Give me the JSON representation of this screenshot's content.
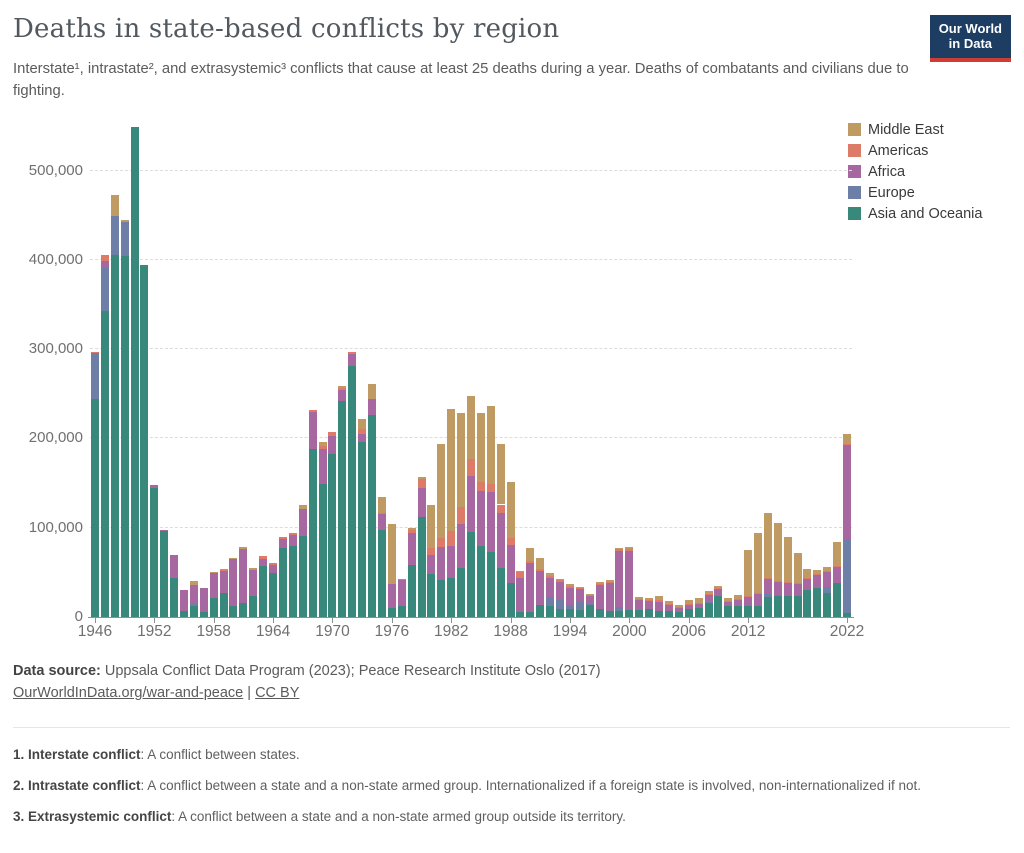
{
  "header": {
    "title": "Deaths in state-based conflicts by region",
    "subtitle": "Interstate¹, intrastate², and extrasystemic³ conflicts that cause at least 25 deaths during a year. Deaths of combatants and civilians due to fighting.",
    "logo_line1": "Our World",
    "logo_line2": "in Data",
    "logo_bg": "#1d3d63",
    "logo_underline": "#cd3d34"
  },
  "legend": {
    "position": "top-right",
    "items": [
      {
        "label": "Middle East",
        "color": "#BF9A63"
      },
      {
        "label": "Americas",
        "color": "#DE7A68"
      },
      {
        "label": "Africa",
        "color": "#A767A1"
      },
      {
        "label": "Europe",
        "color": "#6D7EA7"
      },
      {
        "label": "Asia and Oceania",
        "color": "#38897C"
      }
    ]
  },
  "chart_data": {
    "type": "bar",
    "stacked": true,
    "unit": "deaths (values stored in thousands)",
    "title": "Deaths in state-based conflicts by region",
    "xlabel": "",
    "ylabel": "",
    "ylim_thousands": [
      0,
      560
    ],
    "grid": "dashed horizontal at 100,000 intervals",
    "years_start": 1946,
    "years_end": 2022,
    "xticks": [
      1946,
      1952,
      1958,
      1964,
      1970,
      1976,
      1982,
      1988,
      1994,
      2000,
      2006,
      2012,
      2022
    ],
    "yticks": [
      {
        "v": 0,
        "label": "0"
      },
      {
        "v": 100,
        "label": "100,000"
      },
      {
        "v": 200,
        "label": "200,000"
      },
      {
        "v": 300,
        "label": "300,000"
      },
      {
        "v": 400,
        "label": "400,000"
      },
      {
        "v": 500,
        "label": "500,000"
      }
    ],
    "series": [
      {
        "name": "Asia and Oceania",
        "color": "#38897C",
        "values_thousands": [
          244,
          343,
          405,
          404,
          549,
          394,
          144,
          97,
          44,
          7,
          12,
          6,
          21,
          27,
          12,
          16,
          23,
          57,
          49,
          77,
          80,
          91,
          188,
          149,
          182,
          242,
          281,
          196,
          226,
          98,
          10,
          12,
          58,
          112,
          48,
          42,
          44,
          55,
          95,
          79,
          73,
          55,
          38,
          6,
          6,
          14,
          12,
          9,
          9,
          8,
          13,
          9,
          7,
          7,
          8,
          8,
          9,
          7,
          7,
          6,
          9,
          10,
          16,
          23,
          12,
          12,
          12,
          12,
          22,
          24,
          24,
          24,
          30,
          32,
          27,
          38,
          5
        ]
      },
      {
        "name": "Europe",
        "color": "#6D7EA7",
        "values_thousands": [
          52,
          48,
          44,
          38,
          0,
          0,
          0,
          0,
          0,
          0,
          3,
          0,
          0,
          0,
          0,
          0,
          0,
          0,
          0,
          0,
          0,
          0,
          0,
          0,
          0,
          0,
          0,
          0,
          0,
          0,
          0,
          0,
          0,
          0,
          0,
          0,
          0,
          0,
          0,
          0,
          0,
          0,
          0,
          0,
          0,
          0,
          10,
          10,
          5,
          9,
          2,
          0,
          0,
          4,
          0,
          0,
          0,
          0,
          0,
          0,
          0,
          0,
          1,
          0,
          0,
          0,
          0,
          0,
          4,
          1,
          0,
          0,
          0,
          0,
          7,
          0,
          82
        ]
      },
      {
        "name": "Africa",
        "color": "#A767A1",
        "values_thousands": [
          0,
          8,
          0,
          0,
          0,
          0,
          4,
          1,
          25,
          23,
          21,
          27,
          28,
          25,
          53,
          60,
          30,
          8,
          9,
          10,
          12,
          30,
          42,
          39,
          21,
          12,
          14,
          9,
          18,
          17,
          27,
          29,
          36,
          32,
          21,
          36,
          35,
          49,
          63,
          62,
          67,
          62,
          43,
          38,
          55,
          38,
          22,
          20,
          19,
          14,
          9,
          27,
          31,
          63,
          66,
          11,
          9,
          10,
          7,
          4,
          5,
          5,
          8,
          8,
          5,
          7,
          10,
          14,
          17,
          14,
          14,
          13,
          13,
          15,
          16,
          18,
          106
        ]
      },
      {
        "name": "Americas",
        "color": "#DE7A68",
        "values_thousands": [
          1,
          6,
          0,
          0,
          0,
          0,
          0,
          0,
          0,
          0,
          0,
          0,
          0,
          1,
          0,
          0,
          0,
          3,
          2,
          3,
          2,
          0,
          2,
          3,
          4,
          3,
          2,
          5,
          0,
          2,
          0,
          2,
          4,
          11,
          8,
          11,
          17,
          19,
          19,
          10,
          9,
          9,
          8,
          6,
          2,
          2,
          2,
          2,
          2,
          2,
          1,
          1,
          1,
          2,
          2,
          1,
          1,
          2,
          1,
          1,
          1,
          1,
          1,
          1,
          1,
          1,
          1,
          1,
          1,
          1,
          1,
          1,
          1,
          1,
          1,
          1,
          1
        ]
      },
      {
        "name": "Middle East",
        "color": "#BF9A63",
        "values_thousands": [
          0,
          0,
          24,
          3,
          0,
          0,
          0,
          0,
          0,
          0,
          4,
          0,
          1,
          1,
          1,
          2,
          2,
          0,
          0,
          0,
          0,
          5,
          0,
          5,
          0,
          2,
          0,
          12,
          17,
          17,
          67,
          0,
          2,
          2,
          48,
          105,
          137,
          105,
          71,
          77,
          87,
          68,
          62,
          2,
          14,
          12,
          3,
          2,
          2,
          1,
          1,
          2,
          2,
          1,
          2,
          2,
          2,
          4,
          3,
          2,
          4,
          5,
          3,
          3,
          3,
          5,
          52,
          67,
          72,
          65,
          51,
          34,
          10,
          5,
          5,
          27,
          11
        ]
      }
    ]
  },
  "footer": {
    "source_label": "Data source:",
    "source_text": " Uppsala Conflict Data Program (2023); Peace Research Institute Oslo (2017)",
    "link1": "OurWorldInData.org/war-and-peace",
    "separator": "|",
    "link2": "CC BY",
    "notes": [
      {
        "label": "1. Interstate conflict",
        "text": ": A conflict between states."
      },
      {
        "label": "2. Intrastate conflict",
        "text": ": A conflict between a state and a non-state armed group. Internationalized if a foreign state is involved, non-internationalized if not."
      },
      {
        "label": "3. Extrasystemic conflict",
        "text": ": A conflict between a state and a non-state armed group outside its territory."
      }
    ]
  }
}
